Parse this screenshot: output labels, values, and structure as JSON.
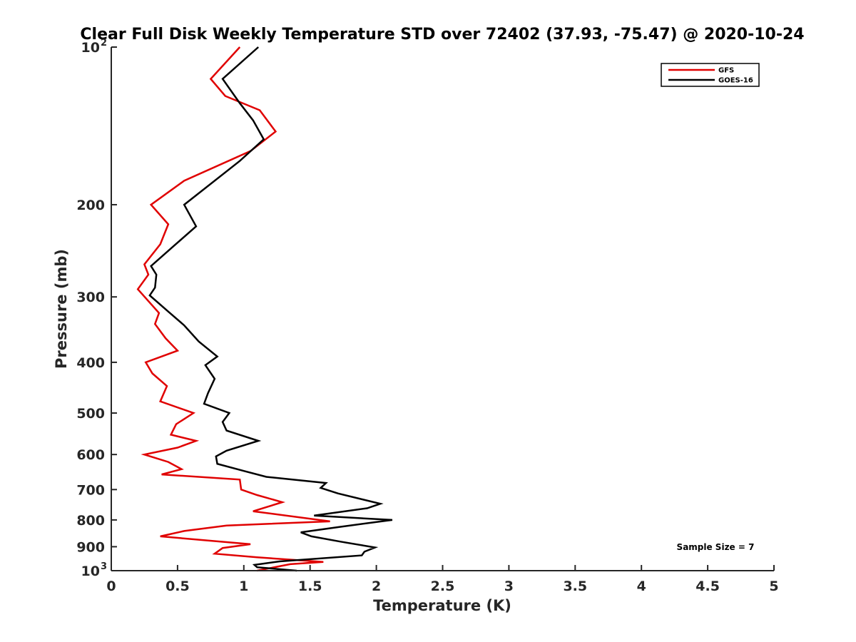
{
  "chart_data": {
    "type": "line",
    "title": "Clear Full Disk Weekly Temperature STD over 72402 (37.93, -75.47) @ 2020-10-24",
    "xlabel": "Temperature (K)",
    "ylabel": "Pressure (mb)",
    "xlim": [
      0,
      5
    ],
    "ylim": [
      100,
      1000
    ],
    "yscale": "log",
    "y_reversed": true,
    "grid": false,
    "legend_position": "top-right",
    "annotation": "Sample Size = 7",
    "x_ticks": [
      {
        "value": 0,
        "label": "0"
      },
      {
        "value": 0.5,
        "label": "0.5"
      },
      {
        "value": 1,
        "label": "1"
      },
      {
        "value": 1.5,
        "label": "1.5"
      },
      {
        "value": 2,
        "label": "2"
      },
      {
        "value": 2.5,
        "label": "2.5"
      },
      {
        "value": 3,
        "label": "3"
      },
      {
        "value": 3.5,
        "label": "3.5"
      },
      {
        "value": 4,
        "label": "4"
      },
      {
        "value": 4.5,
        "label": "4.5"
      },
      {
        "value": 5,
        "label": "5"
      }
    ],
    "y_ticks": [
      {
        "value": 100,
        "label": "10",
        "sup": "2"
      },
      {
        "value": 200,
        "label": "200"
      },
      {
        "value": 300,
        "label": "300"
      },
      {
        "value": 400,
        "label": "400"
      },
      {
        "value": 500,
        "label": "500"
      },
      {
        "value": 600,
        "label": "600"
      },
      {
        "value": 700,
        "label": "700"
      },
      {
        "value": 800,
        "label": "800"
      },
      {
        "value": 900,
        "label": "900"
      },
      {
        "value": 1000,
        "label": "10",
        "sup": "3"
      }
    ],
    "series": [
      {
        "name": "GFS",
        "color": "#e00000",
        "points": [
          [
            0.97,
            100
          ],
          [
            0.75,
            115
          ],
          [
            0.86,
            124
          ],
          [
            1.12,
            132
          ],
          [
            1.24,
            145
          ],
          [
            1.05,
            158
          ],
          [
            0.55,
            180
          ],
          [
            0.3,
            200
          ],
          [
            0.43,
            218
          ],
          [
            0.37,
            238
          ],
          [
            0.25,
            260
          ],
          [
            0.28,
            272
          ],
          [
            0.2,
            290
          ],
          [
            0.36,
            322
          ],
          [
            0.33,
            338
          ],
          [
            0.41,
            360
          ],
          [
            0.5,
            380
          ],
          [
            0.26,
            400
          ],
          [
            0.31,
            420
          ],
          [
            0.42,
            444
          ],
          [
            0.37,
            475
          ],
          [
            0.62,
            500
          ],
          [
            0.49,
            525
          ],
          [
            0.45,
            550
          ],
          [
            0.64,
            565
          ],
          [
            0.5,
            582
          ],
          [
            0.25,
            600
          ],
          [
            0.43,
            620
          ],
          [
            0.53,
            640
          ],
          [
            0.38,
            655
          ],
          [
            0.97,
            670
          ],
          [
            0.98,
            700
          ],
          [
            1.1,
            717
          ],
          [
            1.29,
            740
          ],
          [
            1.07,
            770
          ],
          [
            1.65,
            805
          ],
          [
            0.87,
            820
          ],
          [
            0.55,
            840
          ],
          [
            0.37,
            860
          ],
          [
            1.05,
            890
          ],
          [
            0.84,
            905
          ],
          [
            0.78,
            928
          ],
          [
            1.1,
            943
          ],
          [
            1.6,
            962
          ],
          [
            1.35,
            972
          ],
          [
            1.1,
            1000
          ]
        ]
      },
      {
        "name": "GOES-16",
        "color": "#000000",
        "points": [
          [
            1.11,
            100
          ],
          [
            0.84,
            115
          ],
          [
            0.97,
            128
          ],
          [
            1.07,
            138
          ],
          [
            1.15,
            150
          ],
          [
            0.97,
            165
          ],
          [
            0.55,
            200
          ],
          [
            0.64,
            220
          ],
          [
            0.47,
            240
          ],
          [
            0.3,
            262
          ],
          [
            0.34,
            272
          ],
          [
            0.33,
            288
          ],
          [
            0.29,
            298
          ],
          [
            0.43,
            320
          ],
          [
            0.55,
            340
          ],
          [
            0.66,
            365
          ],
          [
            0.8,
            390
          ],
          [
            0.71,
            405
          ],
          [
            0.78,
            430
          ],
          [
            0.73,
            458
          ],
          [
            0.7,
            480
          ],
          [
            0.89,
            500
          ],
          [
            0.84,
            520
          ],
          [
            0.87,
            540
          ],
          [
            1.11,
            565
          ],
          [
            0.87,
            590
          ],
          [
            0.79,
            605
          ],
          [
            0.8,
            625
          ],
          [
            1.0,
            645
          ],
          [
            1.17,
            662
          ],
          [
            1.62,
            680
          ],
          [
            1.58,
            695
          ],
          [
            1.71,
            712
          ],
          [
            2.03,
            745
          ],
          [
            1.93,
            760
          ],
          [
            1.53,
            785
          ],
          [
            2.12,
            800
          ],
          [
            1.72,
            825
          ],
          [
            1.43,
            845
          ],
          [
            1.51,
            860
          ],
          [
            1.73,
            880
          ],
          [
            1.99,
            903
          ],
          [
            1.91,
            920
          ],
          [
            1.89,
            935
          ],
          [
            1.27,
            960
          ],
          [
            1.08,
            975
          ],
          [
            1.1,
            985
          ],
          [
            1.4,
            1000
          ]
        ]
      }
    ]
  }
}
